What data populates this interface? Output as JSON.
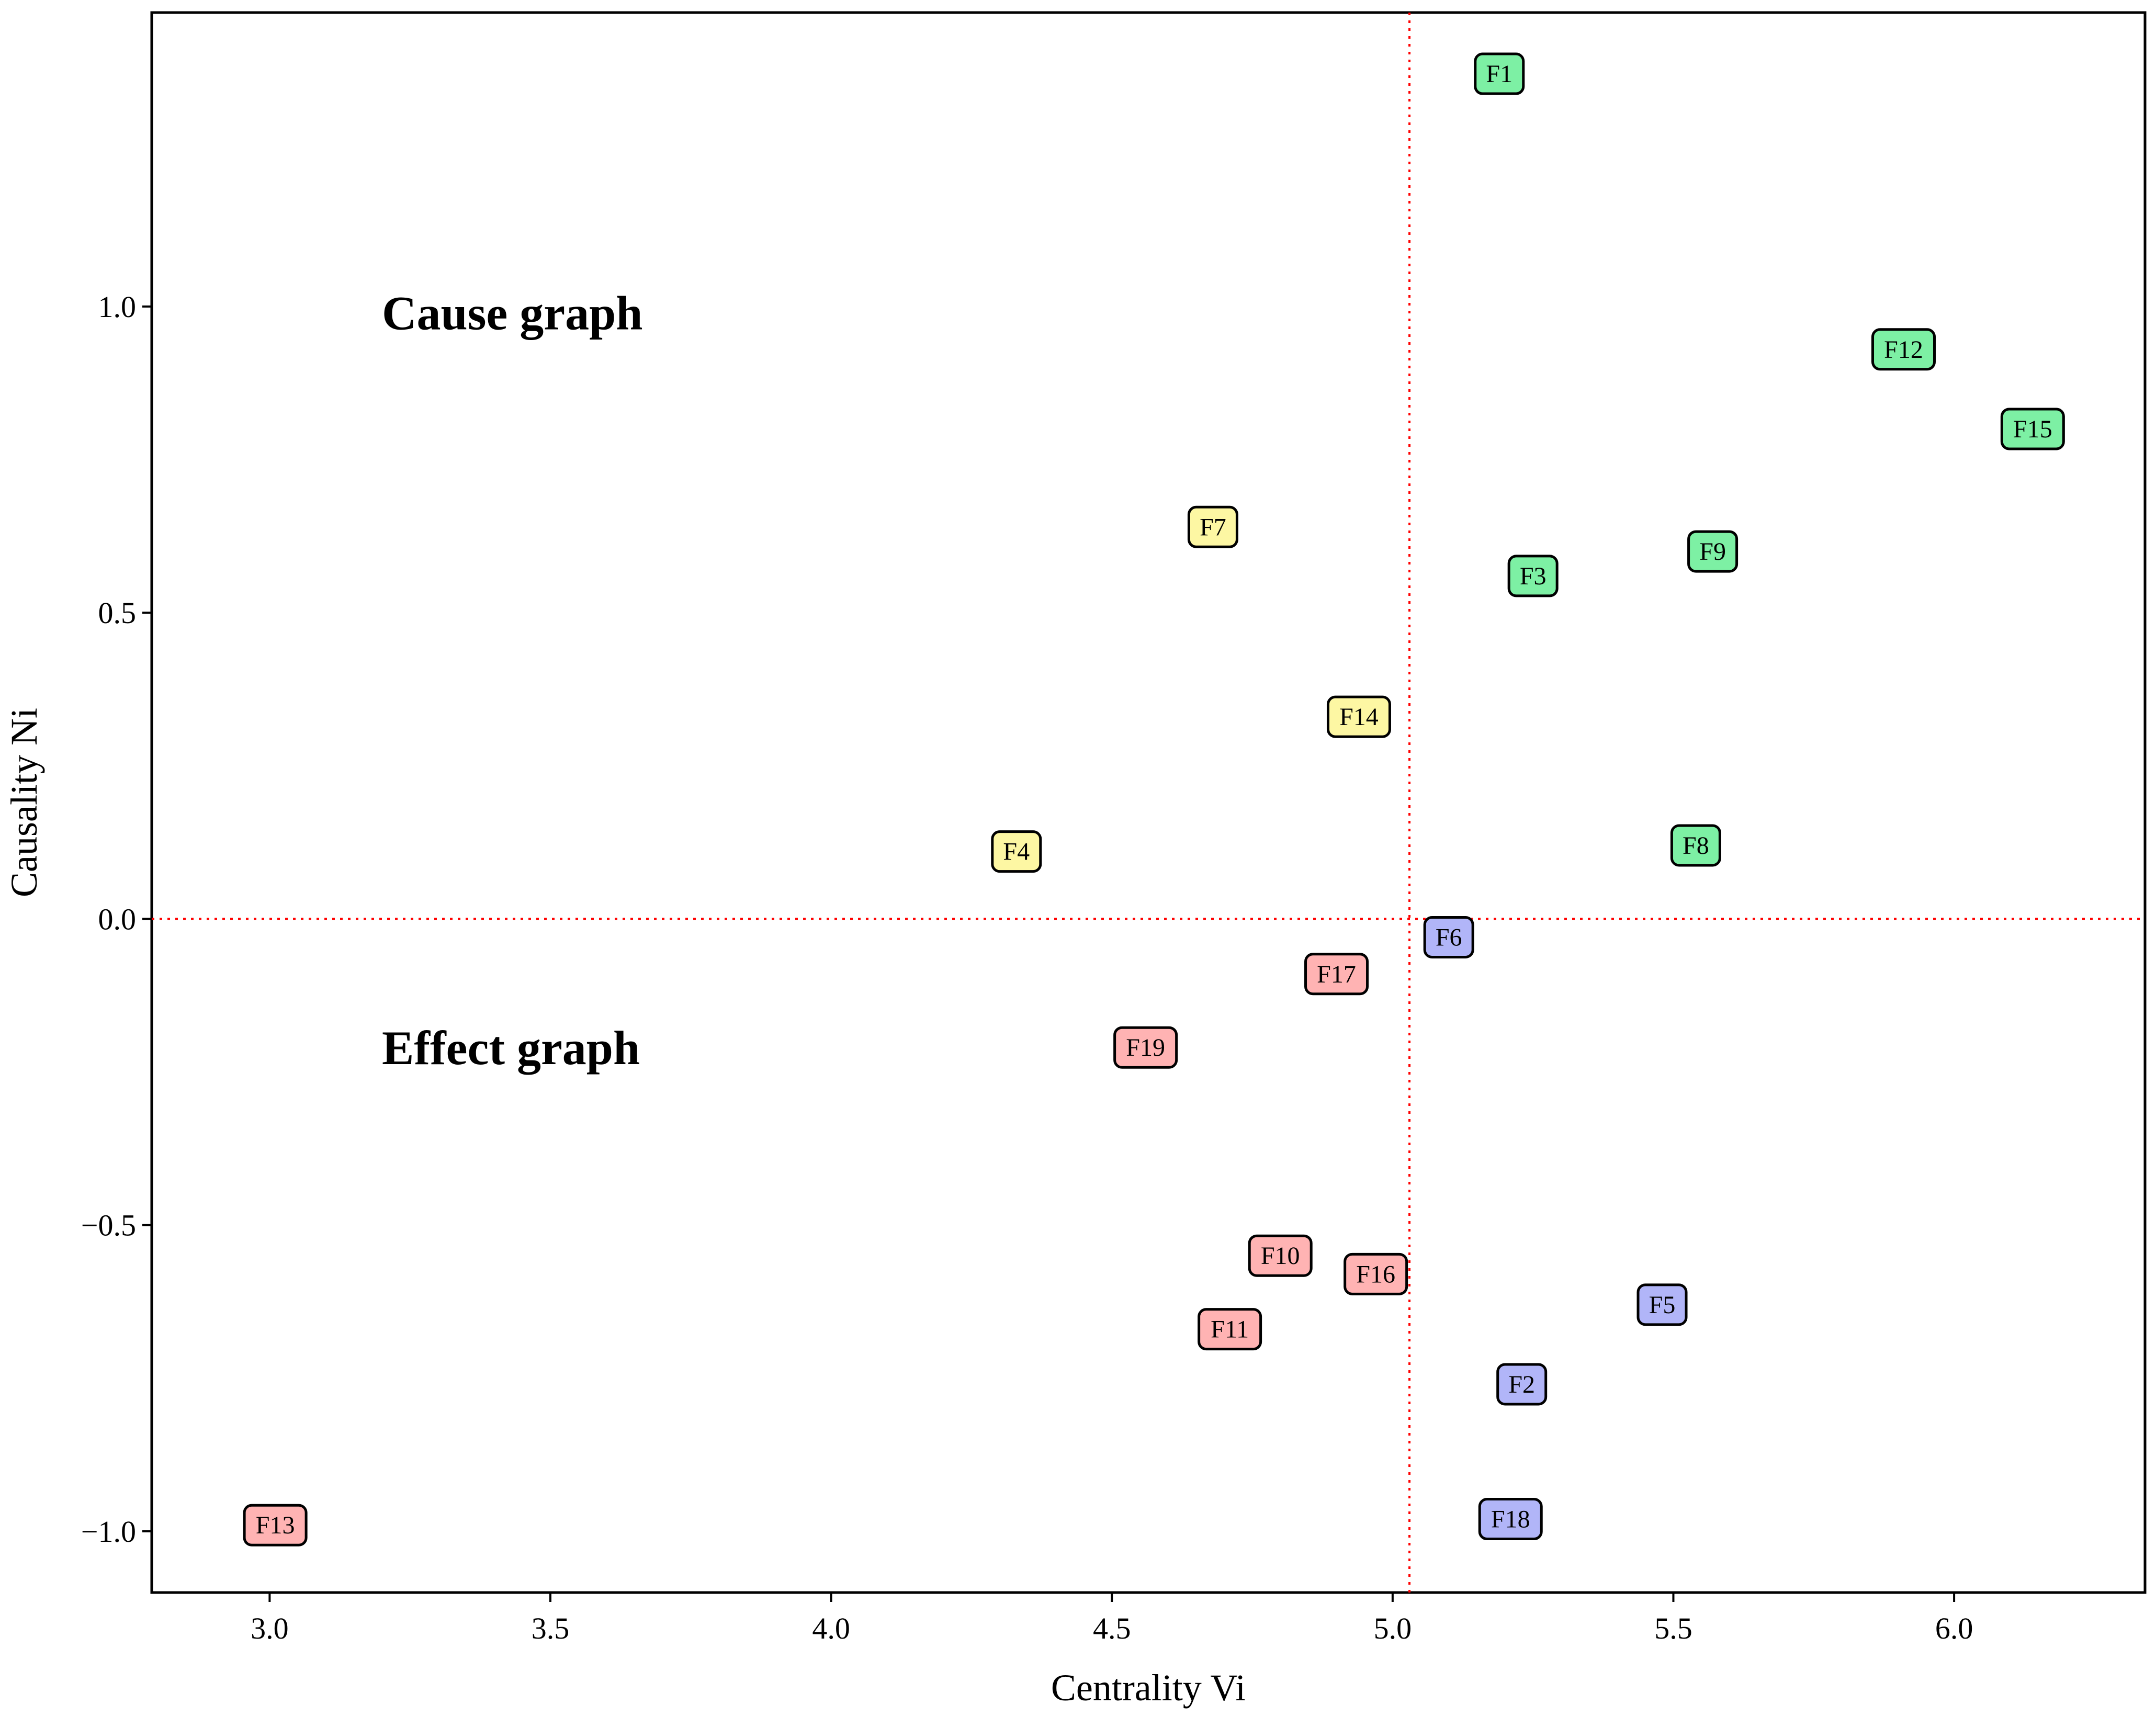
{
  "chart_data": {
    "type": "scatter",
    "title": "",
    "xlabel": "Centrality Vi",
    "ylabel": "Causality Ni",
    "xlim": [
      2.79,
      6.34
    ],
    "ylim": [
      -1.1,
      1.48
    ],
    "xticks": [
      3.0,
      3.5,
      4.0,
      4.5,
      5.0,
      5.5,
      6.0
    ],
    "xtick_labels": [
      "3.0",
      "3.5",
      "4.0",
      "4.5",
      "5.0",
      "5.5",
      "6.0"
    ],
    "yticks": [
      1.0,
      0.5,
      0.0,
      -0.5,
      -1.0
    ],
    "ytick_labels": [
      "1.0",
      "0.5",
      "0.0",
      "−0.5",
      "−1.0"
    ],
    "grid": false,
    "reference_lines": {
      "x": 5.03,
      "y": 0.0,
      "color": "#ff0000",
      "style": "dotted"
    },
    "annotations": {
      "cause": {
        "text": "Cause graph",
        "x": 3.2,
        "y": 0.99
      },
      "effect": {
        "text": "Effect graph",
        "x": 3.2,
        "y": -0.21
      }
    },
    "groups": {
      "green": "#7df0a4",
      "yellow": "#fdf7a3",
      "blue": "#b1b5f8",
      "red": "#ffb3b3"
    },
    "points": [
      {
        "label": "F1",
        "x": 5.19,
        "y": 1.38,
        "group": "green"
      },
      {
        "label": "F12",
        "x": 5.91,
        "y": 0.93,
        "group": "green"
      },
      {
        "label": "F15",
        "x": 6.14,
        "y": 0.8,
        "group": "green"
      },
      {
        "label": "F7",
        "x": 4.68,
        "y": 0.64,
        "group": "yellow"
      },
      {
        "label": "F9",
        "x": 5.57,
        "y": 0.6,
        "group": "green"
      },
      {
        "label": "F3",
        "x": 5.25,
        "y": 0.56,
        "group": "green"
      },
      {
        "label": "F14",
        "x": 4.94,
        "y": 0.33,
        "group": "yellow"
      },
      {
        "label": "F4",
        "x": 4.33,
        "y": 0.11,
        "group": "yellow"
      },
      {
        "label": "F8",
        "x": 5.54,
        "y": 0.12,
        "group": "green"
      },
      {
        "label": "F6",
        "x": 5.1,
        "y": -0.03,
        "group": "blue"
      },
      {
        "label": "F17",
        "x": 4.9,
        "y": -0.09,
        "group": "red"
      },
      {
        "label": "F19",
        "x": 4.56,
        "y": -0.21,
        "group": "red"
      },
      {
        "label": "F10",
        "x": 4.8,
        "y": -0.55,
        "group": "red"
      },
      {
        "label": "F16",
        "x": 4.97,
        "y": -0.58,
        "group": "red"
      },
      {
        "label": "F5",
        "x": 5.48,
        "y": -0.63,
        "group": "blue"
      },
      {
        "label": "F11",
        "x": 4.71,
        "y": -0.67,
        "group": "red"
      },
      {
        "label": "F2",
        "x": 5.23,
        "y": -0.76,
        "group": "blue"
      },
      {
        "label": "F13",
        "x": 3.01,
        "y": -0.99,
        "group": "red"
      },
      {
        "label": "F18",
        "x": 5.21,
        "y": -0.98,
        "group": "blue"
      }
    ]
  }
}
